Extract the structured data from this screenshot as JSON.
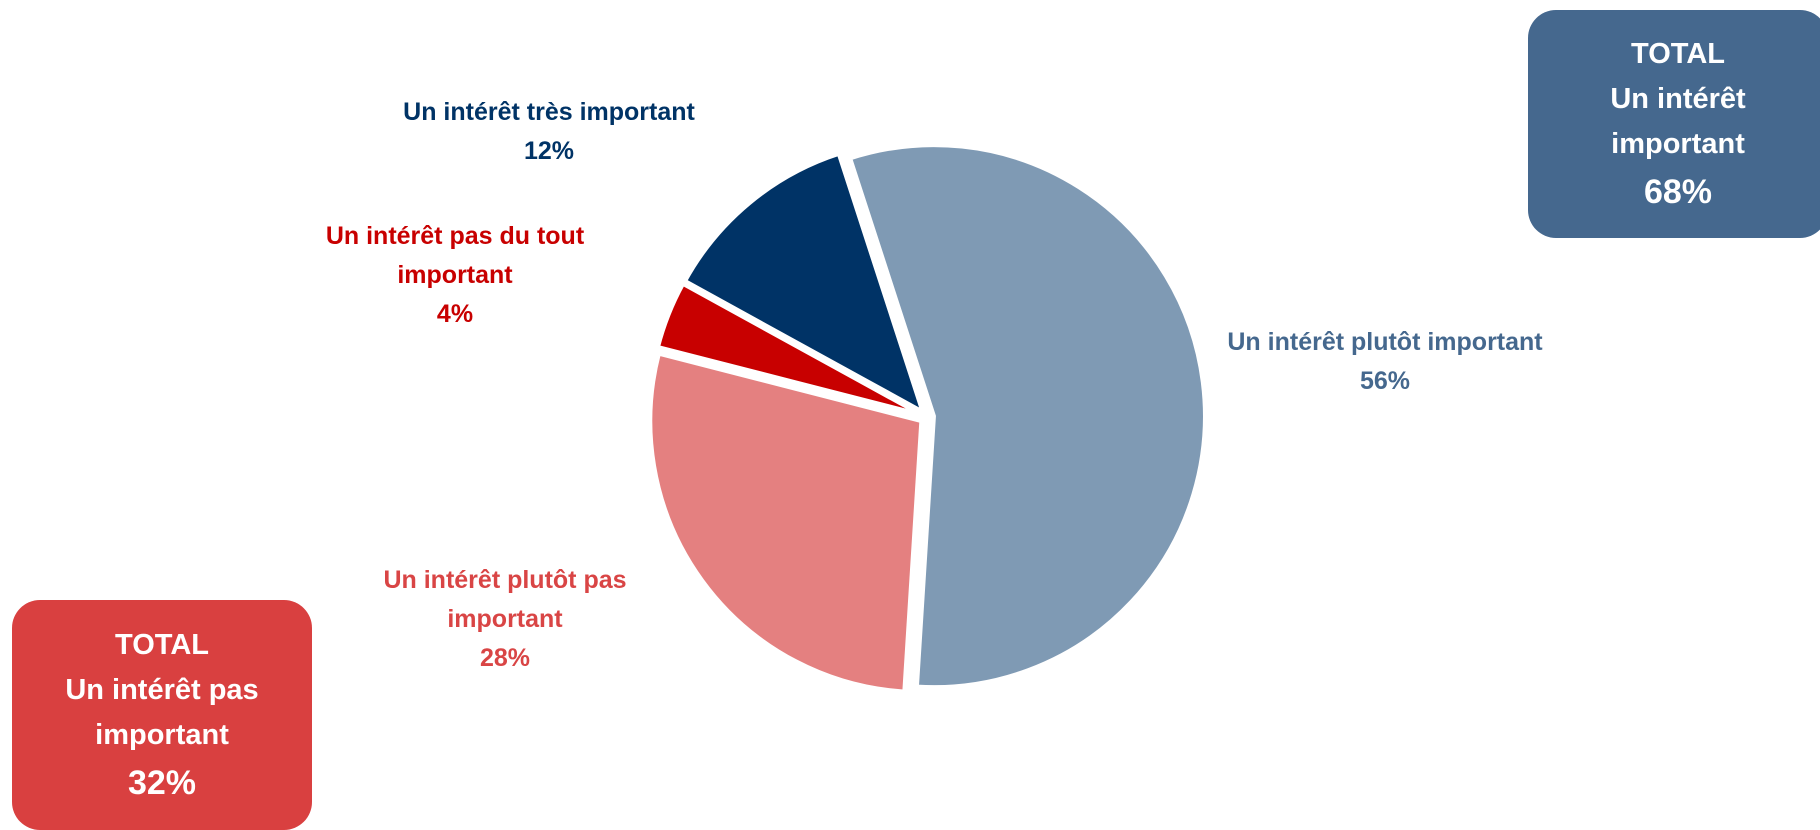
{
  "chart_data": {
    "type": "pie",
    "slices": [
      {
        "label": "Un intérêt plutôt important",
        "value": 56,
        "display": "56%",
        "color": "#7f9ab4"
      },
      {
        "label": "Un intérêt plutôt pas important",
        "value": 28,
        "display": "28%",
        "color": "#e48080"
      },
      {
        "label": "Un intérêt pas du tout important",
        "value": 4,
        "display": "4%",
        "color": "#c80000"
      },
      {
        "label": "Un intérêt très important",
        "value": 12,
        "display": "12%",
        "color": "#003366"
      }
    ],
    "label_colors": {
      "Un intérêt plutôt important": "#45688e",
      "Un intérêt plutôt pas important": "#d94545",
      "Un intérêt pas du tout important": "#c80000",
      "Un intérêt très important": "#003366"
    }
  },
  "totals": {
    "positive": {
      "heading": "TOTAL",
      "line1": "Un intérêt",
      "line2": "important",
      "value": "68%",
      "color": "#45688e"
    },
    "negative": {
      "heading": "TOTAL",
      "line1": "Un intérêt pas",
      "line2": "important",
      "value": "32%",
      "color": "#d94040"
    }
  }
}
